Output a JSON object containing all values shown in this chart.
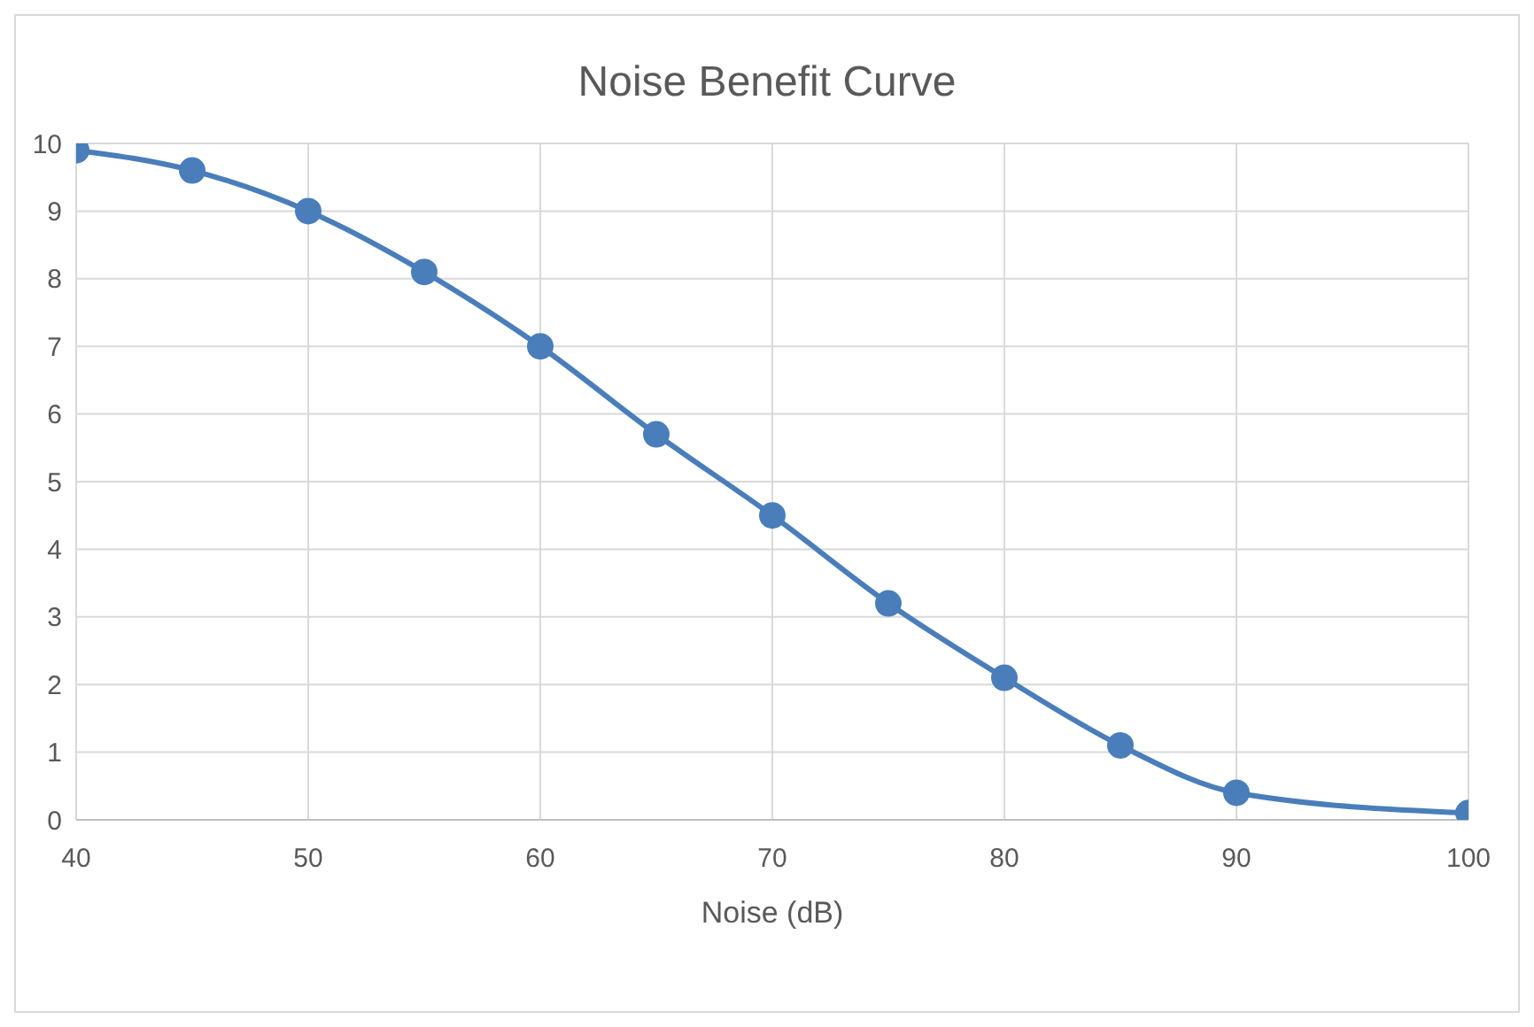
{
  "chart_data": {
    "type": "line",
    "title": "Noise Benefit Curve",
    "xlabel": "Noise (dB)",
    "x": [
      40,
      45,
      50,
      55,
      60,
      65,
      70,
      75,
      80,
      85,
      90,
      100
    ],
    "series": [
      {
        "color": "#4a7ebb",
        "values": [
          9.9,
          9.6,
          9.0,
          8.1,
          7.0,
          5.7,
          4.5,
          3.2,
          2.1,
          1.1,
          0.4,
          0.1
        ]
      }
    ],
    "xlim": [
      40,
      100
    ],
    "xticks": [
      40,
      50,
      60,
      70,
      80,
      90,
      100
    ],
    "ylim": [
      0,
      10
    ],
    "yticks": [
      0,
      1,
      2,
      3,
      4,
      5,
      6,
      7,
      8,
      9,
      10
    ],
    "grid": true,
    "marker": "circle",
    "line_style": "solid",
    "legend": false
  }
}
